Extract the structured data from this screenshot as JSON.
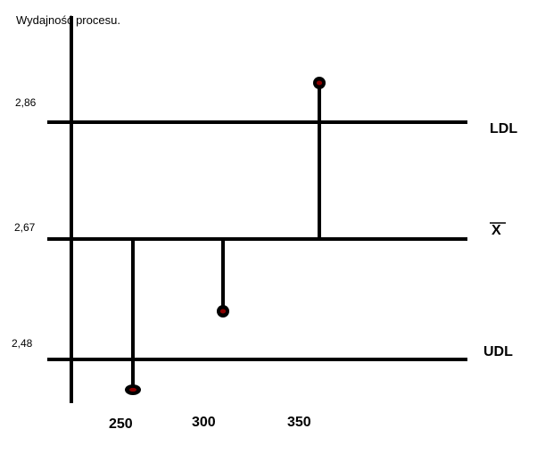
{
  "chart_data": {
    "type": "scatter",
    "title": "Wydajność procesu.",
    "xlabel": "",
    "ylabel": "",
    "x_ticks": [
      "250",
      "300",
      "350"
    ],
    "y_ticks": [
      "2,86",
      "2,67",
      "2,48"
    ],
    "reference_lines": [
      {
        "label": "LDL",
        "value": 2.86
      },
      {
        "label": "X",
        "value": 2.67,
        "overline": true
      },
      {
        "label": "UDL",
        "value": 2.48
      }
    ],
    "series": [
      {
        "points": [
          {
            "x": 250,
            "y": 2.43
          },
          {
            "x": 300,
            "y": 2.55
          },
          {
            "x": 350,
            "y": 2.92
          }
        ]
      }
    ],
    "grid": false,
    "legend": "none",
    "colors": {
      "line": "#000000",
      "marker": "#000000",
      "marker_highlight": "#8b0000",
      "background": "#ffffff"
    }
  }
}
